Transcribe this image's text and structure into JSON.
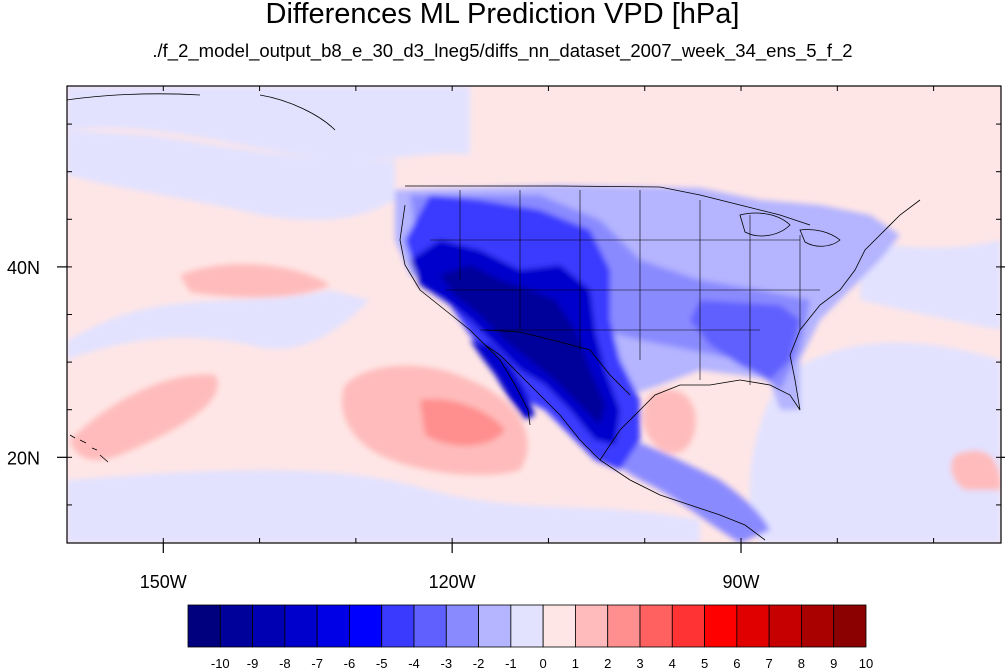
{
  "title": "Differences ML Prediction VPD [hPa]",
  "subtitle": "./f_2_model_output_b8_e_30_d3_lneg5/diffs_nn_dataset_2007_week_34_ens_5_f_2",
  "map": {
    "lon_range": [
      -160,
      -63
    ],
    "lat_range": [
      11,
      59
    ],
    "lon_ticks": [
      {
        "lon": -150,
        "label": "150W"
      },
      {
        "lon": -120,
        "label": "120W"
      },
      {
        "lon": -90,
        "label": "90W"
      }
    ],
    "lat_ticks": [
      {
        "lat": 40,
        "label": "40N"
      },
      {
        "lat": 20,
        "label": "20N"
      }
    ]
  },
  "colorbar": {
    "labels": [
      "-10",
      "-9",
      "-8",
      "-7",
      "-6",
      "-5",
      "-4",
      "-3",
      "-2",
      "-1",
      "0",
      "1",
      "2",
      "3",
      "4",
      "5",
      "6",
      "7",
      "8",
      "9",
      "10"
    ],
    "colors": [
      "#00007f",
      "#00009a",
      "#0000b3",
      "#0000cc",
      "#0000e6",
      "#0000ff",
      "#3a3aff",
      "#6060ff",
      "#8a8aff",
      "#b4b4ff",
      "#e2e2ff",
      "#ffe6e6",
      "#ffbbbb",
      "#ff8e8e",
      "#ff6060",
      "#ff3333",
      "#ff0000",
      "#e10000",
      "#c60000",
      "#a90000",
      "#8b0000"
    ]
  }
}
